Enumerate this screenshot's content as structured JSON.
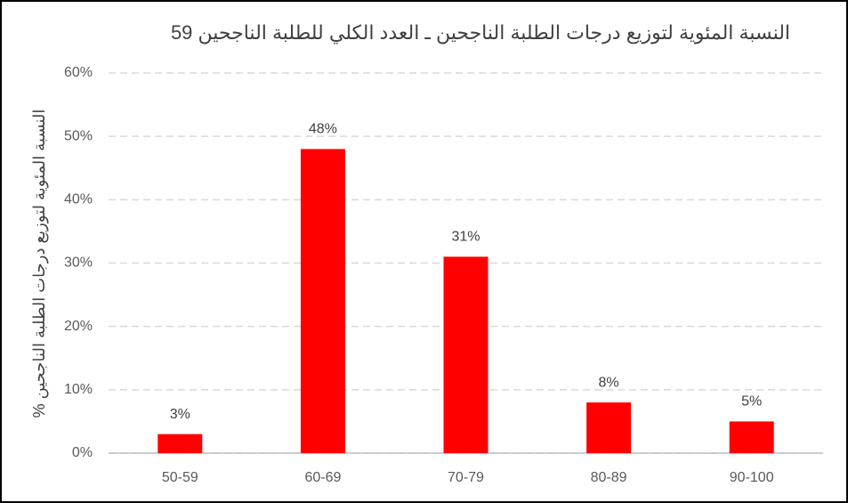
{
  "chart_data": {
    "type": "bar",
    "title": "النسبة المئوية لتوزيع درجات الطلبة الناجحين ـ العدد الكلي للطلبة الناجحين 59",
    "y_label": "النسبة المئوية لتوزيع درجات الطلبة الناجحين %",
    "categories": [
      "50-59",
      "60-69",
      "70-79",
      "80-89",
      "90-100"
    ],
    "values": [
      3,
      48,
      31,
      8,
      5
    ],
    "value_labels": [
      "3%",
      "48%",
      "31%",
      "8%",
      "5%"
    ],
    "color": "#ff0000",
    "ylim": [
      0,
      60
    ],
    "yticks": [
      {
        "value": 0,
        "label": "0%"
      },
      {
        "value": 10,
        "label": "10%"
      },
      {
        "value": 20,
        "label": "20%"
      },
      {
        "value": 30,
        "label": "30%"
      },
      {
        "value": 40,
        "label": "40%"
      },
      {
        "value": 50,
        "label": "50%"
      },
      {
        "value": 60,
        "label": "60%"
      }
    ],
    "grid": true
  }
}
